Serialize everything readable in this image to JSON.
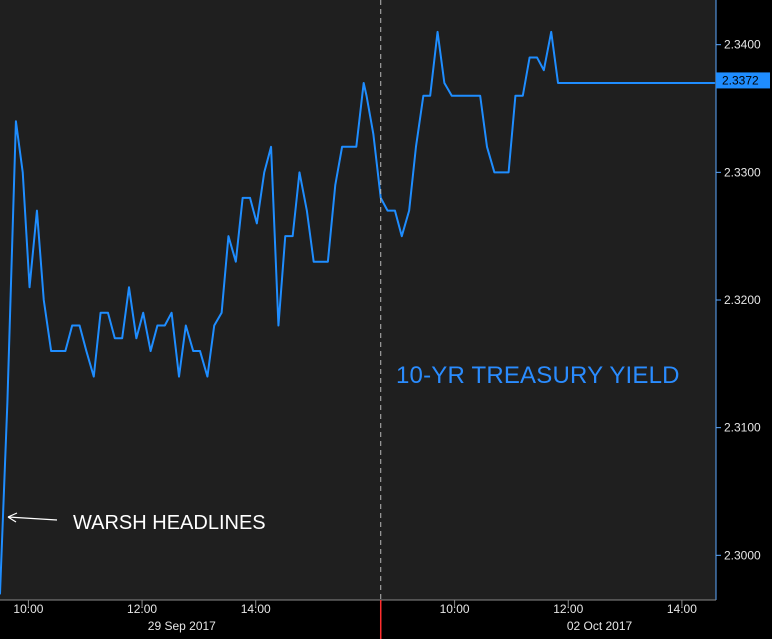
{
  "chart_data": {
    "type": "line",
    "title": "10-YR TREASURY YIELD",
    "annotation": "WARSH HEADLINES",
    "ylim": [
      2.2965,
      2.3435
    ],
    "y_ticks": [
      "2.3400",
      "2.3300",
      "2.3200",
      "2.3100",
      "2.3000"
    ],
    "y_tick_values": [
      2.34,
      2.33,
      2.32,
      2.31,
      2.3
    ],
    "last_value": "2.3372",
    "x_ticks": [
      "10:00",
      "12:00",
      "14:00",
      "10:00",
      "12:00",
      "14:00"
    ],
    "x_tick_positions": [
      0.25,
      2.25,
      4.25,
      7.75,
      9.75,
      11.75
    ],
    "date_labels": [
      "29 Sep 2017",
      "02 Oct 2017"
    ],
    "date_positions": [
      2.95,
      10.3
    ],
    "session_break": 6.45,
    "xlim": [
      -0.25,
      12.35
    ],
    "series": [
      {
        "color": "#1f8dff",
        "x": [
          -0.25,
          -0.12,
          0.03,
          0.15,
          0.27,
          0.4,
          0.52,
          0.65,
          0.77,
          0.9,
          1.02,
          1.15,
          1.27,
          1.4,
          1.52,
          1.65,
          1.77,
          1.9,
          2.02,
          2.15,
          2.27,
          2.4,
          2.52,
          2.65,
          2.77,
          2.9,
          3.02,
          3.15,
          3.27,
          3.4,
          3.52,
          3.65,
          3.77,
          3.9,
          4.02,
          4.15,
          4.27,
          4.4,
          4.52,
          4.65,
          4.77,
          4.9,
          5.02,
          5.15,
          5.27,
          5.4,
          5.52,
          5.65,
          5.77,
          5.9,
          6.02,
          6.15,
          6.2,
          6.32,
          6.45,
          6.57,
          6.7,
          6.82,
          6.95,
          7.07,
          7.2,
          7.32,
          7.45,
          7.57,
          7.7,
          7.82,
          7.95,
          8.07,
          8.2,
          8.32,
          8.45,
          8.57,
          8.7,
          8.82,
          8.95,
          9.07,
          9.2,
          9.32,
          9.45,
          9.57,
          9.7,
          9.82,
          9.95,
          10.07,
          10.2,
          10.32,
          10.45,
          10.57,
          10.7,
          10.82,
          10.95,
          11.07,
          11.2,
          11.32,
          11.45,
          11.57,
          11.7,
          11.82,
          11.95,
          12.07,
          12.2,
          12.32
        ],
        "y": [
          2.297,
          2.312,
          2.334,
          2.33,
          2.321,
          2.327,
          2.32,
          2.316,
          2.316,
          2.316,
          2.318,
          2.318,
          2.316,
          2.314,
          2.319,
          2.319,
          2.317,
          2.317,
          2.321,
          2.317,
          2.319,
          2.316,
          2.318,
          2.318,
          2.319,
          2.314,
          2.318,
          2.316,
          2.316,
          2.314,
          2.318,
          2.319,
          2.325,
          2.323,
          2.328,
          2.328,
          2.326,
          2.33,
          2.332,
          2.318,
          2.325,
          2.325,
          2.33,
          2.327,
          2.323,
          2.323,
          2.323,
          2.329,
          2.332,
          2.332,
          2.332,
          2.337,
          2.336,
          2.333,
          2.328,
          2.327,
          2.327,
          2.325,
          2.327,
          2.332,
          2.336,
          2.336,
          2.341,
          2.337,
          2.336,
          2.336,
          2.336,
          2.336,
          2.336,
          2.332,
          2.33,
          2.33,
          2.33,
          2.336,
          2.336,
          2.339,
          2.339,
          2.338,
          2.341,
          2.337,
          2.337,
          2.337,
          2.337,
          2.337,
          2.337,
          2.337,
          2.337,
          2.337,
          2.337,
          2.337,
          2.337,
          2.337,
          2.337,
          2.337,
          2.337,
          2.337,
          2.337,
          2.337,
          2.337,
          2.337,
          2.337,
          2.337
        ]
      }
    ],
    "grid": false,
    "legend": "none"
  }
}
